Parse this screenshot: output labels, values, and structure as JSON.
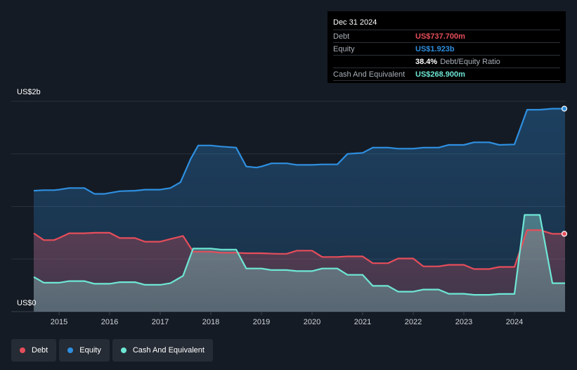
{
  "tooltip": {
    "date": "Dec 31 2024",
    "rows": [
      {
        "label": "Debt",
        "value": "US$737.700m",
        "color": "#e64d5a"
      },
      {
        "label": "Equity",
        "value": "US$1.923b",
        "color": "#2e8fe0"
      },
      {
        "label": "",
        "value": "38.4%",
        "suffix": "Debt/Equity Ratio"
      },
      {
        "label": "Cash And Equivalent",
        "value": "US$268.900m",
        "color": "#6ee7d5"
      }
    ]
  },
  "legend": [
    {
      "label": "Debt",
      "color": "#e64d5a"
    },
    {
      "label": "Equity",
      "color": "#2e8fe0"
    },
    {
      "label": "Cash And Equivalent",
      "color": "#6ee7d5"
    }
  ],
  "chart_data": {
    "type": "area",
    "y_axis_labels": [
      "US$2b",
      "US$0"
    ],
    "ylim": [
      0,
      2.0
    ],
    "xlim": [
      2014.5,
      2025.0
    ],
    "x_ticks": [
      "2015",
      "2016",
      "2017",
      "2018",
      "2019",
      "2020",
      "2021",
      "2022",
      "2023",
      "2024"
    ],
    "grid": true,
    "series": [
      {
        "name": "Equity",
        "color": "#2e8fe0",
        "points": [
          [
            2014.5,
            1.15
          ],
          [
            2014.7,
            1.155
          ],
          [
            2014.9,
            1.155
          ],
          [
            2015.0,
            1.16
          ],
          [
            2015.2,
            1.175
          ],
          [
            2015.5,
            1.175
          ],
          [
            2015.7,
            1.12
          ],
          [
            2015.9,
            1.12
          ],
          [
            2016.2,
            1.145
          ],
          [
            2016.5,
            1.15
          ],
          [
            2016.7,
            1.16
          ],
          [
            2017.0,
            1.16
          ],
          [
            2017.2,
            1.175
          ],
          [
            2017.4,
            1.23
          ],
          [
            2017.6,
            1.45
          ],
          [
            2017.75,
            1.58
          ],
          [
            2018.0,
            1.58
          ],
          [
            2018.2,
            1.57
          ],
          [
            2018.5,
            1.56
          ],
          [
            2018.7,
            1.38
          ],
          [
            2018.9,
            1.37
          ],
          [
            2019.0,
            1.38
          ],
          [
            2019.2,
            1.41
          ],
          [
            2019.5,
            1.41
          ],
          [
            2019.7,
            1.395
          ],
          [
            2020.0,
            1.395
          ],
          [
            2020.2,
            1.4
          ],
          [
            2020.5,
            1.4
          ],
          [
            2020.7,
            1.5
          ],
          [
            2021.0,
            1.51
          ],
          [
            2021.2,
            1.56
          ],
          [
            2021.5,
            1.56
          ],
          [
            2021.7,
            1.55
          ],
          [
            2022.0,
            1.55
          ],
          [
            2022.2,
            1.56
          ],
          [
            2022.5,
            1.56
          ],
          [
            2022.7,
            1.585
          ],
          [
            2023.0,
            1.585
          ],
          [
            2023.2,
            1.61
          ],
          [
            2023.5,
            1.61
          ],
          [
            2023.7,
            1.585
          ],
          [
            2024.0,
            1.59
          ],
          [
            2024.25,
            1.92
          ],
          [
            2024.5,
            1.92
          ],
          [
            2024.75,
            1.93
          ],
          [
            2025.0,
            1.93
          ]
        ]
      },
      {
        "name": "Debt",
        "color": "#e64d5a",
        "points": [
          [
            2014.5,
            0.745
          ],
          [
            2014.7,
            0.68
          ],
          [
            2014.9,
            0.68
          ],
          [
            2015.0,
            0.7
          ],
          [
            2015.2,
            0.745
          ],
          [
            2015.5,
            0.745
          ],
          [
            2015.7,
            0.75
          ],
          [
            2016.0,
            0.75
          ],
          [
            2016.2,
            0.7
          ],
          [
            2016.5,
            0.7
          ],
          [
            2016.7,
            0.665
          ],
          [
            2017.0,
            0.665
          ],
          [
            2017.2,
            0.69
          ],
          [
            2017.45,
            0.72
          ],
          [
            2017.65,
            0.57
          ],
          [
            2018.0,
            0.57
          ],
          [
            2018.2,
            0.56
          ],
          [
            2018.5,
            0.56
          ],
          [
            2018.7,
            0.555
          ],
          [
            2019.0,
            0.555
          ],
          [
            2019.3,
            0.55
          ],
          [
            2019.5,
            0.55
          ],
          [
            2019.7,
            0.58
          ],
          [
            2020.0,
            0.58
          ],
          [
            2020.2,
            0.52
          ],
          [
            2020.5,
            0.52
          ],
          [
            2020.7,
            0.525
          ],
          [
            2021.0,
            0.525
          ],
          [
            2021.2,
            0.46
          ],
          [
            2021.5,
            0.46
          ],
          [
            2021.7,
            0.505
          ],
          [
            2022.0,
            0.505
          ],
          [
            2022.2,
            0.43
          ],
          [
            2022.5,
            0.43
          ],
          [
            2022.7,
            0.445
          ],
          [
            2023.0,
            0.445
          ],
          [
            2023.2,
            0.405
          ],
          [
            2023.5,
            0.405
          ],
          [
            2023.7,
            0.425
          ],
          [
            2024.0,
            0.425
          ],
          [
            2024.25,
            0.775
          ],
          [
            2024.5,
            0.775
          ],
          [
            2024.75,
            0.74
          ],
          [
            2025.0,
            0.74
          ]
        ]
      },
      {
        "name": "Cash And Equivalent",
        "color": "#6ee7d5",
        "points": [
          [
            2014.5,
            0.33
          ],
          [
            2014.7,
            0.275
          ],
          [
            2014.9,
            0.275
          ],
          [
            2015.0,
            0.275
          ],
          [
            2015.2,
            0.29
          ],
          [
            2015.5,
            0.29
          ],
          [
            2015.7,
            0.265
          ],
          [
            2016.0,
            0.265
          ],
          [
            2016.2,
            0.28
          ],
          [
            2016.5,
            0.28
          ],
          [
            2016.7,
            0.255
          ],
          [
            2017.0,
            0.255
          ],
          [
            2017.2,
            0.27
          ],
          [
            2017.45,
            0.34
          ],
          [
            2017.65,
            0.6
          ],
          [
            2018.0,
            0.6
          ],
          [
            2018.2,
            0.59
          ],
          [
            2018.5,
            0.59
          ],
          [
            2018.7,
            0.41
          ],
          [
            2019.0,
            0.41
          ],
          [
            2019.2,
            0.395
          ],
          [
            2019.5,
            0.395
          ],
          [
            2019.7,
            0.385
          ],
          [
            2020.0,
            0.385
          ],
          [
            2020.2,
            0.41
          ],
          [
            2020.5,
            0.41
          ],
          [
            2020.7,
            0.35
          ],
          [
            2021.0,
            0.35
          ],
          [
            2021.2,
            0.245
          ],
          [
            2021.5,
            0.245
          ],
          [
            2021.7,
            0.19
          ],
          [
            2022.0,
            0.19
          ],
          [
            2022.2,
            0.21
          ],
          [
            2022.5,
            0.21
          ],
          [
            2022.7,
            0.17
          ],
          [
            2023.0,
            0.17
          ],
          [
            2023.2,
            0.16
          ],
          [
            2023.5,
            0.16
          ],
          [
            2023.7,
            0.168
          ],
          [
            2024.0,
            0.168
          ],
          [
            2024.2,
            0.92
          ],
          [
            2024.5,
            0.92
          ],
          [
            2024.75,
            0.27
          ],
          [
            2025.0,
            0.27
          ]
        ]
      }
    ]
  }
}
